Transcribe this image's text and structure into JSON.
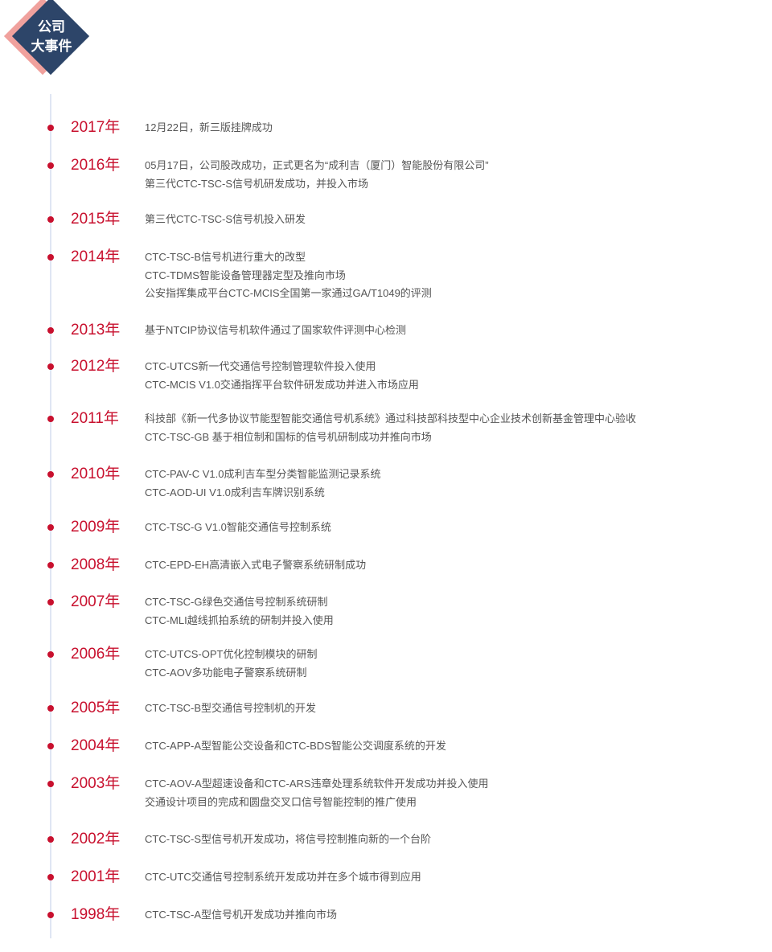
{
  "badge": {
    "line1": "公司",
    "line2": "大事件"
  },
  "colors": {
    "accent": "#c8102e",
    "navy": "#2d4569",
    "pink": "#f0a19d"
  },
  "events": [
    {
      "year": "2017年",
      "items": [
        "12月22日，新三版挂牌成功"
      ]
    },
    {
      "year": "2016年",
      "items": [
        "05月17日，公司股改成功，正式更名为“成利吉（厦门）智能股份有限公司”",
        "第三代CTC-TSC-S信号机研发成功，并投入市场"
      ]
    },
    {
      "year": "2015年",
      "items": [
        "第三代CTC-TSC-S信号机投入研发"
      ]
    },
    {
      "year": "2014年",
      "items": [
        "CTC-TSC-B信号机进行重大的改型",
        "CTC-TDMS智能设备管理器定型及推向市场",
        "公安指挥集成平台CTC-MCIS全国第一家通过GA/T1049的评测"
      ]
    },
    {
      "year": "2013年",
      "items": [
        "基于NTCIP协议信号机软件通过了国家软件评测中心检测"
      ]
    },
    {
      "year": "2012年",
      "items": [
        "CTC-UTCS新一代交通信号控制管理软件投入使用",
        "CTC-MCIS V1.0交通指挥平台软件研发成功并进入市场应用"
      ]
    },
    {
      "year": "2011年",
      "items": [
        "科技部《新一代多协议节能型智能交通信号机系统》通过科技部科技型中心企业技术创新基金管理中心验收",
        "CTC-TSC-GB 基于相位制和国标的信号机研制成功并推向市场"
      ]
    },
    {
      "year": "2010年",
      "items": [
        "CTC-PAV-C V1.0成利吉车型分类智能监测记录系统",
        "CTC-AOD-UI V1.0成利吉车牌识别系统"
      ]
    },
    {
      "year": "2009年",
      "items": [
        "CTC-TSC-G V1.0智能交通信号控制系统"
      ]
    },
    {
      "year": "2008年",
      "items": [
        "CTC-EPD-EH高清嵌入式电子警察系统研制成功"
      ]
    },
    {
      "year": "2007年",
      "items": [
        "CTC-TSC-G绿色交通信号控制系统研制",
        "CTC-MLI越线抓拍系统的研制并投入使用"
      ]
    },
    {
      "year": "2006年",
      "items": [
        "CTC-UTCS-OPT优化控制模块的研制",
        "CTC-AOV多功能电子警察系统研制"
      ]
    },
    {
      "year": "2005年",
      "items": [
        "CTC-TSC-B型交通信号控制机的开发"
      ]
    },
    {
      "year": "2004年",
      "items": [
        "CTC-APP-A型智能公交设备和CTC-BDS智能公交调度系统的开发"
      ]
    },
    {
      "year": "2003年",
      "items": [
        "CTC-AOV-A型超速设备和CTC-ARS违章处理系统软件开发成功并投入使用",
        "交通设计项目的完成和圆盘交叉口信号智能控制的推广使用"
      ]
    },
    {
      "year": "2002年",
      "items": [
        "CTC-TSC-S型信号机开发成功，将信号控制推向新的一个台阶"
      ]
    },
    {
      "year": "2001年",
      "items": [
        "CTC-UTC交通信号控制系统开发成功并在多个城市得到应用"
      ]
    },
    {
      "year": "1998年",
      "items": [
        "CTC-TSC-A型信号机开发成功并推向市场"
      ]
    }
  ]
}
